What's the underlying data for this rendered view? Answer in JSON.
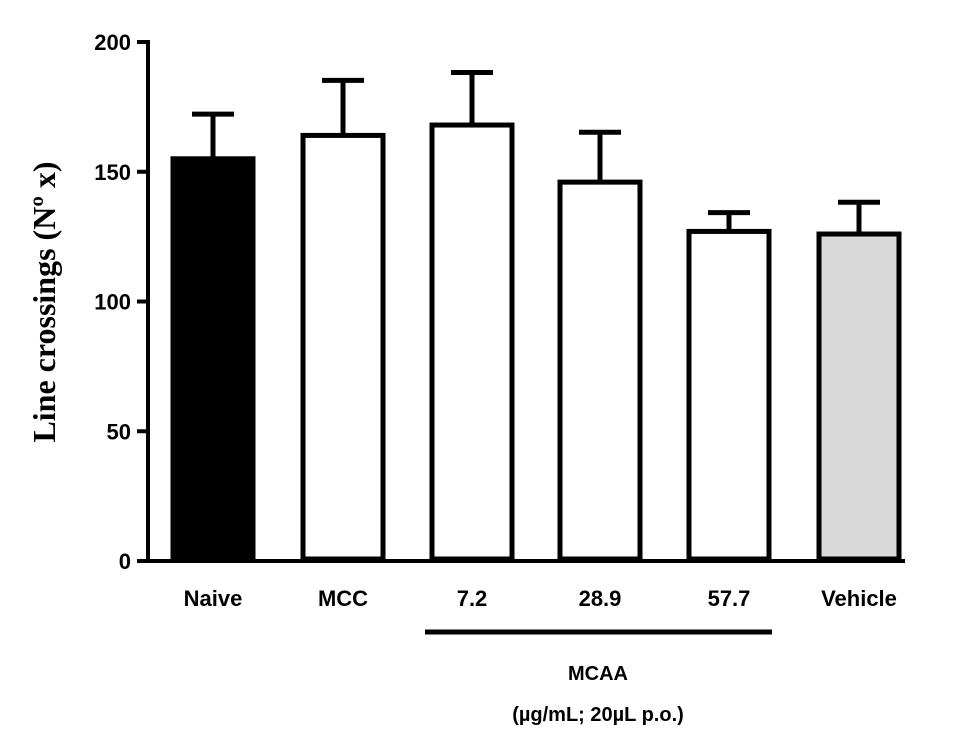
{
  "chart_data": {
    "type": "bar",
    "title": "",
    "xlabel": "",
    "ylabel": "Line crossings (Nº x)",
    "ylim": [
      0,
      200
    ],
    "yticks": [
      0,
      50,
      100,
      150,
      200
    ],
    "categories": [
      "Naive",
      "MCC",
      "7.2",
      "28.9",
      "57.7",
      "Vehicle"
    ],
    "values": [
      155,
      164,
      168,
      146,
      127,
      126
    ],
    "error_upper": [
      173,
      186,
      189,
      166,
      135,
      139
    ],
    "fills": [
      "#000000",
      "#ffffff",
      "#ffffff",
      "#ffffff",
      "#ffffff",
      "#d9d9d9"
    ],
    "group_bracket": {
      "categories": [
        "7.2",
        "28.9",
        "57.7"
      ],
      "label": "MCAA",
      "sublabel": "(µg/mL; 20µL p.o.)"
    },
    "grid": false
  }
}
